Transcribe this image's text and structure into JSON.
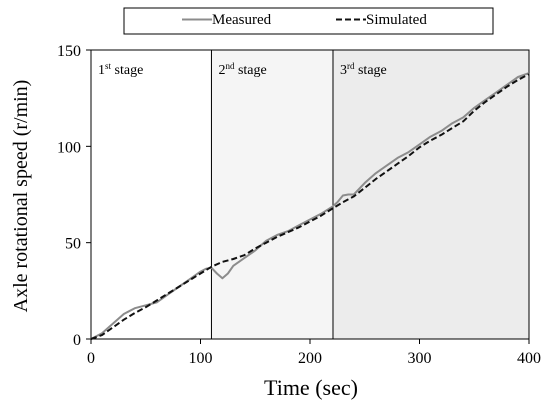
{
  "chart_data": {
    "type": "line",
    "xlabel": "Time (sec)",
    "ylabel": "Axle rotational speed (r/min)",
    "xlim": [
      0,
      400
    ],
    "ylim": [
      0,
      150
    ],
    "xticks": [
      0,
      100,
      200,
      300,
      400
    ],
    "yticks": [
      0,
      50,
      100,
      150
    ],
    "legend_position": "top",
    "stages": [
      {
        "label": "1st stage",
        "base": "1",
        "sup": "st",
        "rest": " stage",
        "x_start": 0,
        "x_end": 110,
        "fill": "#ffffff"
      },
      {
        "label": "2nd stage",
        "base": "2",
        "sup": "nd",
        "rest": " stage",
        "x_start": 110,
        "x_end": 221,
        "fill": "#f5f5f5"
      },
      {
        "label": "3rd stage",
        "base": "3",
        "sup": "rd",
        "rest": " stage",
        "x_start": 221,
        "x_end": 400,
        "fill": "#ececec"
      }
    ],
    "series": [
      {
        "name": "Measured",
        "color": "#8c8c8c",
        "dash": "solid",
        "x": [
          0,
          10,
          20,
          30,
          40,
          50,
          60,
          70,
          80,
          90,
          100,
          105,
          110,
          115,
          120,
          125,
          130,
          140,
          150,
          160,
          170,
          180,
          190,
          200,
          210,
          220,
          225,
          230,
          235,
          240,
          250,
          260,
          270,
          280,
          290,
          300,
          310,
          320,
          330,
          340,
          350,
          360,
          370,
          380,
          390,
          400
        ],
        "y": [
          0,
          3,
          8,
          13,
          16,
          17.5,
          19,
          23,
          27,
          31,
          35,
          36.5,
          37,
          34,
          31.5,
          34,
          38,
          42,
          46,
          51,
          54,
          56,
          59,
          62,
          65,
          68.5,
          71,
          74.5,
          75,
          75,
          81,
          86,
          90,
          94,
          97,
          101,
          105,
          108,
          112,
          115,
          120,
          124,
          128,
          132,
          136,
          138
        ]
      },
      {
        "name": "Simulated",
        "color": "#111111",
        "dash": "dashed",
        "x": [
          0,
          10,
          20,
          30,
          40,
          50,
          60,
          70,
          80,
          90,
          100,
          110,
          120,
          130,
          140,
          150,
          160,
          170,
          180,
          190,
          200,
          210,
          220,
          230,
          240,
          250,
          260,
          270,
          280,
          290,
          300,
          310,
          320,
          330,
          340,
          350,
          360,
          370,
          380,
          390,
          400
        ],
        "y": [
          0,
          2,
          6,
          10,
          13.5,
          16.5,
          20,
          23.5,
          27,
          30.5,
          34,
          37.5,
          40,
          41.5,
          43.5,
          47,
          50,
          53,
          55.5,
          58,
          61,
          64,
          67.5,
          71,
          74,
          78.5,
          83,
          87,
          91,
          95,
          99.5,
          103,
          106,
          109.5,
          113,
          118.5,
          123,
          127,
          131,
          134.5,
          137.5
        ]
      }
    ]
  }
}
